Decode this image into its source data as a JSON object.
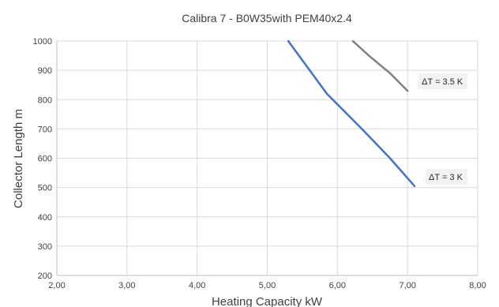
{
  "chart_data": {
    "type": "line",
    "title": "Calibra 7 - B0W35with PEM40x2.4",
    "xlabel": "Heating Capacity  kW",
    "ylabel": "Collector Length  m",
    "xlim": [
      2.0,
      8.0
    ],
    "ylim": [
      200,
      1000
    ],
    "xticks": [
      "2,00",
      "3,00",
      "4,00",
      "5,00",
      "6,00",
      "7,00",
      "8,00"
    ],
    "yticks": [
      "200",
      "300",
      "400",
      "500",
      "600",
      "700",
      "800",
      "900",
      "1000"
    ],
    "grid": true,
    "legend": "none",
    "series": [
      {
        "name": "ΔT = 3 K",
        "color": "#4472c4",
        "x": [
          5.3,
          5.85,
          6.35,
          6.75,
          7.1
        ],
        "y": [
          1000,
          820,
          700,
          600,
          505
        ]
      },
      {
        "name": "ΔT = 3.5 K",
        "color": "#7f7f7f",
        "x": [
          6.22,
          6.45,
          6.75,
          7.0
        ],
        "y": [
          1000,
          950,
          890,
          830
        ]
      }
    ]
  }
}
